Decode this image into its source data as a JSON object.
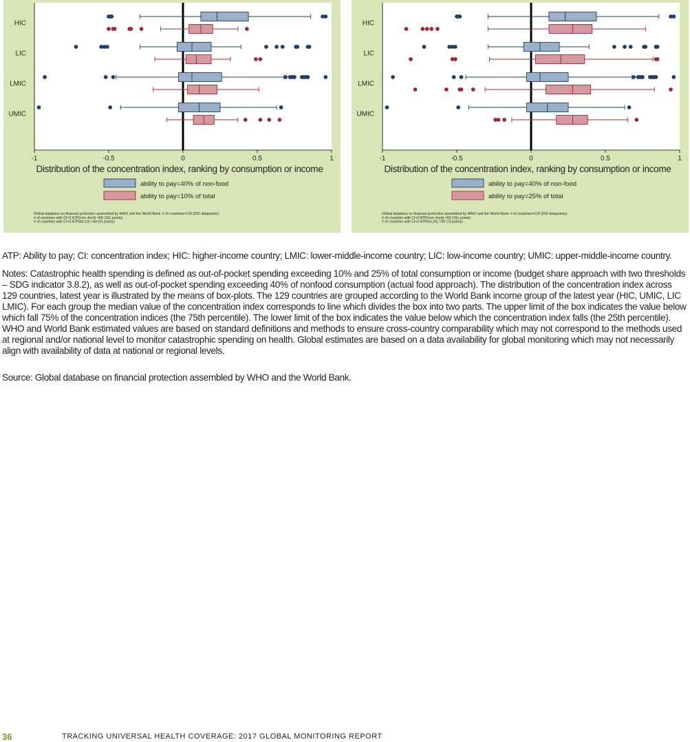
{
  "colors": {
    "panel_bg": "#d9e5b6",
    "plot_bg": "#ffffff",
    "blue_fill": "#9bb0c8",
    "blue_line": "#1f3e6a",
    "red_fill": "#d59aa0",
    "red_line": "#9c2a34"
  },
  "chart_data": [
    {
      "type": "box",
      "xlabel": "Distribution of the concentration index, ranking by consumption or income",
      "xlim": [
        -1,
        1
      ],
      "xticks": [
        "-1",
        "-0.5",
        "0",
        "0.5",
        "1"
      ],
      "categories": [
        "HIC",
        "LIC",
        "LMIC",
        "UMIC"
      ],
      "legend": [
        "ability to pay=40% of non-food",
        "ability to pay=10% of total"
      ],
      "footnotes": [
        "Global database on financial protection assembled by WHO and the World Bank. # of countries=129 (532 datapoints).",
        "# of countries with CI<0 ATP(non–food) =69 (161 points)",
        "# of countries with CI<0 ATP(tot,10) =44 (91 points)"
      ],
      "series": [
        {
          "boxes": [
            {
              "category": "HIC",
              "whisker_low": -0.29,
              "q1": 0.12,
              "median": 0.23,
              "q3": 0.44,
              "whisker_high": 0.86,
              "outliers": [
                -0.5,
                -0.49,
                -0.48,
                0.94,
                0.96
              ]
            },
            {
              "category": "LIC",
              "whisker_low": -0.29,
              "q1": -0.04,
              "median": 0.06,
              "q3": 0.19,
              "whisker_high": 0.39,
              "outliers": [
                -0.72,
                -0.55,
                -0.53,
                -0.51,
                0.56,
                0.63,
                0.67,
                0.76,
                0.77,
                0.84,
                0.85
              ]
            },
            {
              "category": "LMIC",
              "whisker_low": -0.45,
              "q1": -0.03,
              "median": 0.06,
              "q3": 0.26,
              "whisker_high": 0.68,
              "outliers": [
                -0.93,
                -0.52,
                -0.47,
                0.69,
                0.72,
                0.73,
                0.74,
                0.75,
                0.8,
                0.81,
                0.82,
                0.83,
                0.84,
                0.96
              ]
            },
            {
              "category": "UMIC",
              "whisker_low": -0.42,
              "q1": -0.03,
              "median": 0.11,
              "q3": 0.25,
              "whisker_high": 0.63,
              "outliers": [
                -0.97,
                -0.49,
                0.66
              ]
            }
          ]
        },
        {
          "boxes": [
            {
              "category": "HIC",
              "whisker_low": -0.15,
              "q1": 0.04,
              "median": 0.12,
              "q3": 0.2,
              "whisker_high": 0.37,
              "outliers": [
                -0.5,
                -0.47,
                -0.46,
                -0.36,
                -0.35,
                -0.28,
                0.43
              ]
            },
            {
              "category": "LIC",
              "whisker_low": -0.19,
              "q1": 0.02,
              "median": 0.09,
              "q3": 0.19,
              "whisker_high": 0.32,
              "outliers": [
                0.49,
                0.52
              ]
            },
            {
              "category": "LMIC",
              "whisker_low": -0.2,
              "q1": 0.03,
              "median": 0.11,
              "q3": 0.23,
              "whisker_high": 0.51,
              "outliers": []
            },
            {
              "category": "UMIC",
              "whisker_low": -0.11,
              "q1": 0.07,
              "median": 0.14,
              "q3": 0.21,
              "whisker_high": 0.37,
              "outliers": [
                0.42,
                0.52,
                0.58,
                0.65
              ]
            }
          ]
        }
      ]
    },
    {
      "type": "box",
      "xlabel": "Distribution of the concentration index, ranking by consumption or income",
      "xlim": [
        -1,
        1
      ],
      "xticks": [
        "-1",
        "-0.5",
        "0",
        "0.5",
        "1"
      ],
      "categories": [
        "HIC",
        "LIC",
        "LMIC",
        "UMIC"
      ],
      "legend": [
        "ability to pay=40% of non-food",
        "ability to pay=25% of total"
      ],
      "footnotes": [
        "Global database on financial protection assembled by WHO and the World Bank. # of countries=129 (532 datapoints).",
        "# of countries with CI<0 ATP(non–food) =69 (161 points)",
        "# of countries with CI<0 ATP(tot,25) =39 (73 points)"
      ],
      "series": [
        {
          "boxes": [
            {
              "category": "HIC",
              "whisker_low": -0.29,
              "q1": 0.12,
              "median": 0.23,
              "q3": 0.44,
              "whisker_high": 0.86,
              "outliers": [
                -0.5,
                -0.49,
                -0.48,
                0.94,
                0.96
              ]
            },
            {
              "category": "LIC",
              "whisker_low": -0.29,
              "q1": -0.05,
              "median": 0.06,
              "q3": 0.19,
              "whisker_high": 0.39,
              "outliers": [
                -0.72,
                -0.55,
                -0.53,
                -0.51,
                0.56,
                0.63,
                0.67,
                0.76,
                0.77,
                0.84,
                0.85
              ]
            },
            {
              "category": "LMIC",
              "whisker_low": -0.44,
              "q1": -0.03,
              "median": 0.06,
              "q3": 0.25,
              "whisker_high": 0.68,
              "outliers": [
                -0.93,
                -0.52,
                -0.47,
                0.69,
                0.72,
                0.73,
                0.74,
                0.75,
                0.8,
                0.81,
                0.82,
                0.83,
                0.84,
                0.96
              ]
            },
            {
              "category": "UMIC",
              "whisker_low": -0.42,
              "q1": -0.03,
              "median": 0.11,
              "q3": 0.25,
              "whisker_high": 0.63,
              "outliers": [
                -0.97,
                -0.49,
                0.66
              ]
            }
          ]
        },
        {
          "boxes": [
            {
              "category": "HIC",
              "whisker_low": -0.29,
              "q1": 0.12,
              "median": 0.28,
              "q3": 0.41,
              "whisker_high": 0.77,
              "outliers": [
                -0.84,
                -0.73,
                -0.7,
                -0.67,
                -0.63
              ]
            },
            {
              "category": "LIC",
              "whisker_low": -0.28,
              "q1": 0.03,
              "median": 0.2,
              "q3": 0.36,
              "whisker_high": 0.82,
              "outliers": [
                -0.81,
                -0.53,
                -0.51,
                0.84,
                0.85
              ]
            },
            {
              "category": "LMIC",
              "whisker_low": -0.31,
              "q1": 0.1,
              "median": 0.28,
              "q3": 0.4,
              "whisker_high": 0.83,
              "outliers": [
                -0.78,
                -0.57,
                -0.48,
                -0.47,
                -0.39,
                0.94
              ]
            },
            {
              "category": "UMIC",
              "whisker_low": -0.13,
              "q1": 0.17,
              "median": 0.28,
              "q3": 0.38,
              "whisker_high": 0.65,
              "outliers": [
                -0.24,
                -0.22,
                -0.18,
                0.71
              ]
            }
          ]
        }
      ]
    }
  ],
  "text": {
    "abbreviations": "ATP: Ability to pay; CI: concentration index; HIC: higher-income country; LMIC: lower-middle-income country; LIC: low-income country; UMIC: upper-middle-income country.",
    "notes": "Notes: Catastrophic health spending is defined as out-of-pocket spending exceeding 10% and 25% of total consumption or income (budget share approach with two thresholds – SDG indicator 3.8.2), as well as out-of-pocket spending exceeding 40% of nonfood consumption (actual food approach). The distribution of the concentration index across 129 countries, latest year is illustrated by the means of box-plots. The 129 countries are grouped according to the World Bank income group of the latest year (HIC, UMIC, LIC LMIC). For each group the median value of the concentration index corresponds to line which divides the box into two parts. The upper limit of the box indicates the value below which fall 75% of the concentration indices (the 75th percentile). The lower limit of the box indicates the value below which the concentration index falls (the 25th percentile). WHO and World Bank estimated values are based on standard definitions and methods to ensure cross-country comparability which may not correspond to the methods used at regional and/or national level to monitor catastrophic spending on health. Global estimates are based on a data availability for global monitoring which may not necessarily align with availability of data at national or regional levels.",
    "source": "Source: Global database on financial protection assembled by WHO and the World Bank."
  },
  "footer": {
    "page_number": "36",
    "running_title": "TRACKING UNIVERSAL HEALTH COVERAGE: 2017 GLOBAL MONITORING REPORT"
  }
}
